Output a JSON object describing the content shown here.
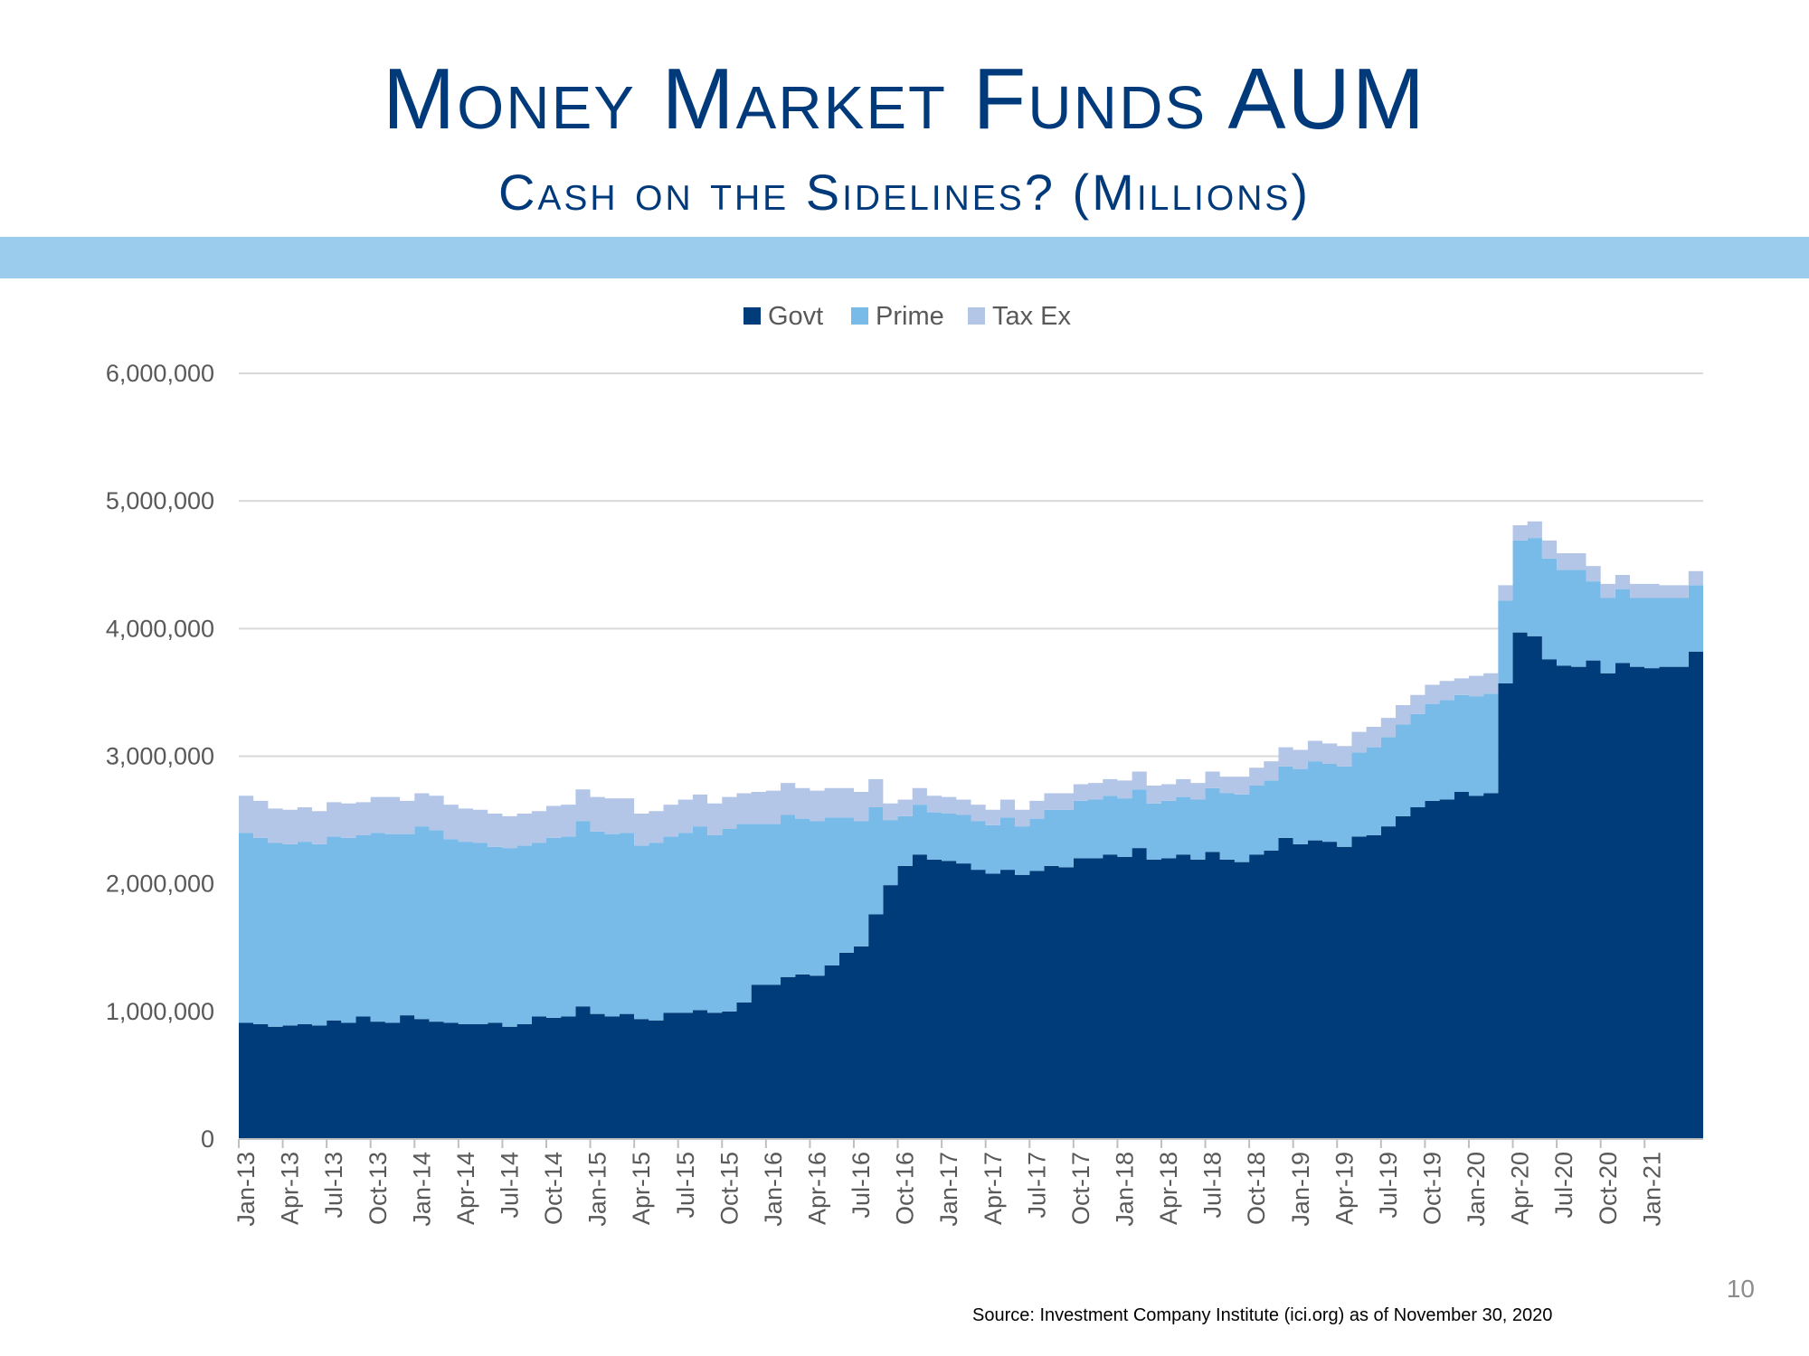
{
  "slide": {
    "title": "Money Market Funds AUM",
    "subtitle": "Cash on the Sidelines? (Millions)",
    "slide_number": "10",
    "source": "Source:  Investment Company Institute (ici.org) as of November 30, 2020"
  },
  "colors": {
    "govt": "#003b7a",
    "prime": "#79bbe8",
    "taxex": "#b4c6e7",
    "band": "#9ccced",
    "grid": "#d9d9d9",
    "title": "#003a7a"
  },
  "chart_data": {
    "type": "area",
    "stacked": true,
    "title": "",
    "xlabel": "",
    "ylabel": "",
    "ylim": [
      0,
      6000000
    ],
    "yticks": [
      0,
      1000000,
      2000000,
      3000000,
      4000000,
      5000000,
      6000000
    ],
    "ytick_labels": [
      "0",
      "1,000,000",
      "2,000,000",
      "3,000,000",
      "4,000,000",
      "5,000,000",
      "6,000,000"
    ],
    "xtick_labels": [
      "Jan-13",
      "Apr-13",
      "Jul-13",
      "Oct-13",
      "Jan-14",
      "Apr-14",
      "Jul-14",
      "Oct-14",
      "Jan-15",
      "Apr-15",
      "Jul-15",
      "Oct-15",
      "Jan-16",
      "Apr-16",
      "Jul-16",
      "Oct-16",
      "Jan-17",
      "Apr-17",
      "Jul-17",
      "Oct-17",
      "Jan-18",
      "Apr-18",
      "Jul-18",
      "Oct-18",
      "Jan-19",
      "Apr-19",
      "Jul-19",
      "Oct-19",
      "Jan-20",
      "Apr-20",
      "Jul-20",
      "Oct-20",
      "Jan-21"
    ],
    "legend": {
      "placement": "top-center",
      "entries": [
        "Govt",
        "Prime",
        "Tax Ex"
      ]
    },
    "grid": true,
    "x": [
      "2013-01",
      "2013-02",
      "2013-03",
      "2013-04",
      "2013-05",
      "2013-06",
      "2013-07",
      "2013-08",
      "2013-09",
      "2013-10",
      "2013-11",
      "2013-12",
      "2014-01",
      "2014-02",
      "2014-03",
      "2014-04",
      "2014-05",
      "2014-06",
      "2014-07",
      "2014-08",
      "2014-09",
      "2014-10",
      "2014-11",
      "2014-12",
      "2015-01",
      "2015-02",
      "2015-03",
      "2015-04",
      "2015-05",
      "2015-06",
      "2015-07",
      "2015-08",
      "2015-09",
      "2015-10",
      "2015-11",
      "2015-12",
      "2016-01",
      "2016-02",
      "2016-03",
      "2016-04",
      "2016-05",
      "2016-06",
      "2016-07",
      "2016-08",
      "2016-09",
      "2016-10",
      "2016-11",
      "2016-12",
      "2017-01",
      "2017-02",
      "2017-03",
      "2017-04",
      "2017-05",
      "2017-06",
      "2017-07",
      "2017-08",
      "2017-09",
      "2017-10",
      "2017-11",
      "2017-12",
      "2018-01",
      "2018-02",
      "2018-03",
      "2018-04",
      "2018-05",
      "2018-06",
      "2018-07",
      "2018-08",
      "2018-09",
      "2018-10",
      "2018-11",
      "2018-12",
      "2019-01",
      "2019-02",
      "2019-03",
      "2019-04",
      "2019-05",
      "2019-06",
      "2019-07",
      "2019-08",
      "2019-09",
      "2019-10",
      "2019-11",
      "2019-12",
      "2020-01",
      "2020-02",
      "2020-03",
      "2020-04",
      "2020-05",
      "2020-06",
      "2020-07",
      "2020-08",
      "2020-09",
      "2020-10",
      "2020-11",
      "2020-12",
      "2021-01",
      "2021-02",
      "2021-03",
      "2021-04"
    ],
    "series": [
      {
        "name": "Govt",
        "values": [
          910000,
          900000,
          880000,
          890000,
          900000,
          890000,
          930000,
          910000,
          960000,
          920000,
          910000,
          970000,
          940000,
          920000,
          910000,
          900000,
          900000,
          910000,
          880000,
          900000,
          960000,
          950000,
          960000,
          1040000,
          980000,
          960000,
          980000,
          940000,
          930000,
          990000,
          990000,
          1010000,
          990000,
          1000000,
          1070000,
          1210000,
          1210000,
          1270000,
          1290000,
          1280000,
          1360000,
          1460000,
          1510000,
          1760000,
          1990000,
          2140000,
          2230000,
          2190000,
          2180000,
          2160000,
          2110000,
          2080000,
          2110000,
          2070000,
          2100000,
          2140000,
          2130000,
          2200000,
          2200000,
          2230000,
          2210000,
          2280000,
          2190000,
          2200000,
          2230000,
          2190000,
          2250000,
          2190000,
          2170000,
          2230000,
          2260000,
          2360000,
          2310000,
          2340000,
          2330000,
          2290000,
          2370000,
          2380000,
          2450000,
          2530000,
          2600000,
          2650000,
          2660000,
          2720000,
          2690000,
          2710000,
          3570000,
          3970000,
          3940000,
          3760000,
          3710000,
          3700000,
          3750000,
          3650000,
          3730000,
          3700000,
          3690000,
          3700000,
          3700000,
          3820000
        ]
      },
      {
        "name": "Prime",
        "values": [
          1490000,
          1460000,
          1440000,
          1420000,
          1430000,
          1420000,
          1440000,
          1450000,
          1420000,
          1480000,
          1480000,
          1420000,
          1510000,
          1500000,
          1440000,
          1430000,
          1420000,
          1380000,
          1400000,
          1400000,
          1360000,
          1410000,
          1410000,
          1450000,
          1430000,
          1430000,
          1420000,
          1360000,
          1390000,
          1380000,
          1410000,
          1440000,
          1390000,
          1430000,
          1400000,
          1260000,
          1260000,
          1270000,
          1220000,
          1210000,
          1160000,
          1060000,
          980000,
          840000,
          510000,
          390000,
          390000,
          370000,
          370000,
          380000,
          380000,
          380000,
          410000,
          380000,
          410000,
          440000,
          450000,
          450000,
          460000,
          460000,
          460000,
          460000,
          440000,
          450000,
          450000,
          470000,
          500000,
          520000,
          530000,
          540000,
          550000,
          560000,
          590000,
          620000,
          610000,
          630000,
          660000,
          690000,
          700000,
          720000,
          730000,
          760000,
          780000,
          760000,
          780000,
          780000,
          650000,
          720000,
          770000,
          790000,
          750000,
          760000,
          620000,
          590000,
          580000,
          540000,
          550000,
          540000,
          540000,
          520000
        ]
      },
      {
        "name": "Tax Ex",
        "values": [
          290000,
          290000,
          270000,
          270000,
          270000,
          260000,
          270000,
          270000,
          260000,
          280000,
          290000,
          260000,
          260000,
          270000,
          270000,
          260000,
          260000,
          260000,
          250000,
          250000,
          250000,
          250000,
          250000,
          250000,
          270000,
          280000,
          270000,
          250000,
          250000,
          250000,
          260000,
          250000,
          250000,
          250000,
          240000,
          250000,
          260000,
          250000,
          240000,
          240000,
          230000,
          230000,
          230000,
          220000,
          130000,
          130000,
          130000,
          130000,
          130000,
          120000,
          130000,
          120000,
          140000,
          130000,
          140000,
          130000,
          130000,
          130000,
          130000,
          130000,
          140000,
          140000,
          140000,
          130000,
          140000,
          130000,
          130000,
          130000,
          140000,
          140000,
          150000,
          150000,
          150000,
          160000,
          160000,
          160000,
          160000,
          160000,
          150000,
          150000,
          150000,
          150000,
          150000,
          130000,
          160000,
          160000,
          120000,
          120000,
          130000,
          140000,
          130000,
          130000,
          120000,
          110000,
          110000,
          110000,
          110000,
          100000,
          100000,
          110000
        ]
      }
    ]
  }
}
